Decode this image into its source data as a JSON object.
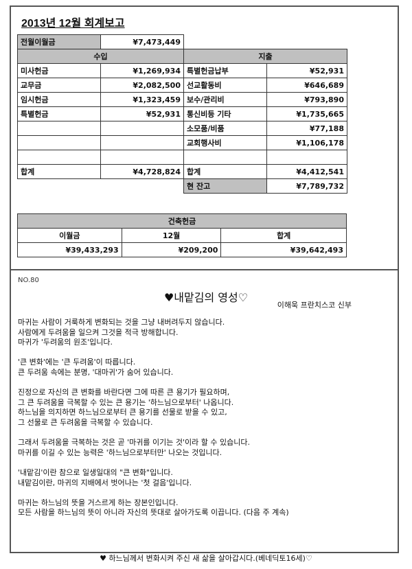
{
  "report": {
    "title": "2013년 12월 회계보고",
    "prev_balance_label": "전월이월금",
    "prev_balance": "¥7,473,449",
    "income_header": "수입",
    "expense_header": "지출",
    "rows": [
      {
        "in_label": "미사헌금",
        "in_value": "¥1,269,934",
        "out_label": "특별헌금납부",
        "out_value": "¥52,931"
      },
      {
        "in_label": "교무금",
        "in_value": "¥2,082,500",
        "out_label": "선교활동비",
        "out_value": "¥646,689"
      },
      {
        "in_label": "임시헌금",
        "in_value": "¥1,323,459",
        "out_label": "보수/관리비",
        "out_value": "¥793,890"
      },
      {
        "in_label": "특별헌금",
        "in_value": "¥52,931",
        "out_label": "통신비등 기타",
        "out_value": "¥1,735,665"
      },
      {
        "in_label": "",
        "in_value": "",
        "out_label": "소모품/비품",
        "out_value": "¥77,188"
      },
      {
        "in_label": "",
        "in_value": "",
        "out_label": "교회행사비",
        "out_value": "¥1,106,178"
      },
      {
        "in_label": "",
        "in_value": "",
        "out_label": "",
        "out_value": ""
      }
    ],
    "income_total_label": "합계",
    "income_total": "¥4,728,824",
    "expense_total_label": "합계",
    "expense_total": "¥4,412,541",
    "balance_label": "현 잔고",
    "balance": "¥7,789,732"
  },
  "building": {
    "title": "건축헌금",
    "headers": [
      "이월금",
      "12월",
      "합계"
    ],
    "values": [
      "¥39,433,293",
      "¥209,200",
      "¥39,642,493"
    ]
  },
  "essay": {
    "number": "NO.80",
    "title": "♥내맡김의 영성♡",
    "author": "이해욱 프란치스코 신부",
    "lines": [
      "마귀는 사람이 거룩하게 변화되는 것을 그냥 내버려두지 않습니다.",
      "사람에게 두려움을 일으켜 그것을 적극 방해합니다.",
      "마귀가 '두려움의 원조'입니다.",
      "",
      "'큰 변화'에는 '큰 두려움'이 따릅니다.",
      "큰 두려움 속에는 분명, '대마귀'가 숨어 있습니다.",
      "",
      "진정으로 자신의 큰 변화를 바란다면 그에 따른  큰 용기가 필요하며,",
      "그 큰 두려움을 극복할 수 있는 큰 용기는 '하느님으로부터' 나옵니다.",
      "하느님을 의지하면 하느님으로부터 큰 용기를 선물로 받을 수 있고,",
      "그 선물로 큰 두려움을 극복할 수 있습니다.",
      "",
      "그래서 두려움을 극복하는 것은 곧 '마귀를 이기는 것'이라 할 수 있습니다.",
      "마귀를 이길 수 있는 능력은 '하느님으로부터만' 나오는 것입니다.",
      "",
      "'내맡김'이란 참으로 일생일대의 \"큰 변화\"입니다.",
      "내맡김이란, 마귀의 지배에서 벗어나는 '첫 걸음'입니다.",
      "",
      "마귀는 하느님의 뜻을 거스르게 하는 장본인입니다.",
      "모든 사람을 하느님의 뜻이 아니라 자신의 뜻대로 살아가도록 이끕니다. (다음 주 계속)"
    ]
  },
  "footer": "♥ 하느님께서 변화시켜 주신 새 삶을 살아갑시다.(베네딕토16세)♡"
}
